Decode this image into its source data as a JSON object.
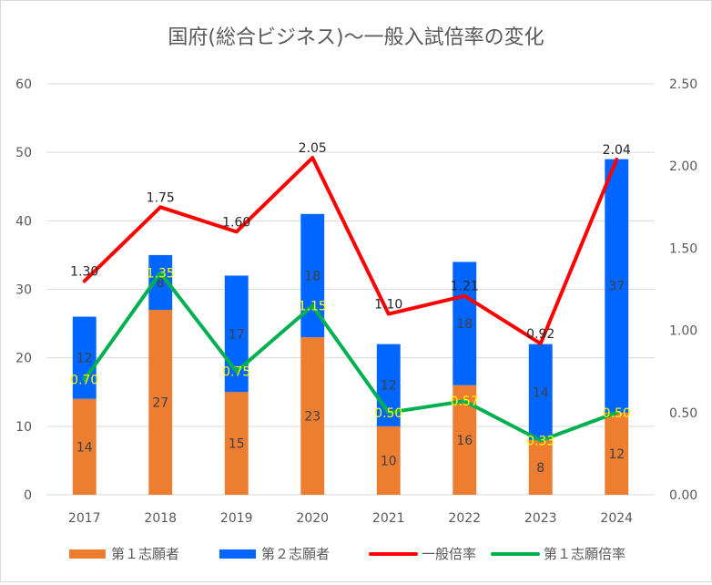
{
  "chart_data": {
    "type": "bar",
    "title": "国府(総合ビジネス)～一般入試倍率の変化",
    "categories": [
      "2017",
      "2018",
      "2019",
      "2020",
      "2021",
      "2022",
      "2023",
      "2024"
    ],
    "y_left": {
      "range": [
        0,
        60
      ],
      "ticks": [
        "0",
        "10",
        "20",
        "30",
        "40",
        "50",
        "60"
      ]
    },
    "y_right": {
      "range": [
        0,
        2.5
      ],
      "ticks": [
        "0.00",
        "0.50",
        "1.00",
        "1.50",
        "2.00",
        "2.50"
      ]
    },
    "grid": true,
    "legend_position": "bottom",
    "series": [
      {
        "name": "第１志願者",
        "kind": "bar",
        "stack": true,
        "axis": "left",
        "color": "#ED7D31",
        "values": [
          14,
          27,
          15,
          23,
          10,
          16,
          8,
          12
        ],
        "labels": [
          "14",
          "27",
          "15",
          "23",
          "10",
          "16",
          "8",
          "12"
        ]
      },
      {
        "name": "第２志願者",
        "kind": "bar",
        "stack": true,
        "axis": "left",
        "color": "#0066FF",
        "values": [
          12,
          8,
          17,
          18,
          12,
          18,
          14,
          37
        ],
        "labels": [
          "12",
          "8",
          "17",
          "18",
          "12",
          "18",
          "14",
          "37"
        ]
      },
      {
        "name": "一般倍率",
        "kind": "line",
        "axis": "right",
        "color": "#FF0000",
        "label_color": "#262626",
        "values": [
          1.3,
          1.75,
          1.6,
          2.05,
          1.1,
          1.21,
          0.92,
          2.04
        ],
        "labels": [
          "1.30",
          "1.75",
          "1.60",
          "2.05",
          "1.10",
          "1.21",
          "0.92",
          "2.04"
        ]
      },
      {
        "name": "第１志願倍率",
        "kind": "line",
        "axis": "right",
        "color": "#00B050",
        "label_color": "#FFFF00",
        "values": [
          0.7,
          1.35,
          0.75,
          1.15,
          0.5,
          0.57,
          0.33,
          0.5
        ],
        "labels": [
          "0.70",
          "1.35",
          "0.75",
          "1.15",
          "0.50",
          "0.57",
          "0.33",
          "0.50"
        ]
      }
    ]
  }
}
